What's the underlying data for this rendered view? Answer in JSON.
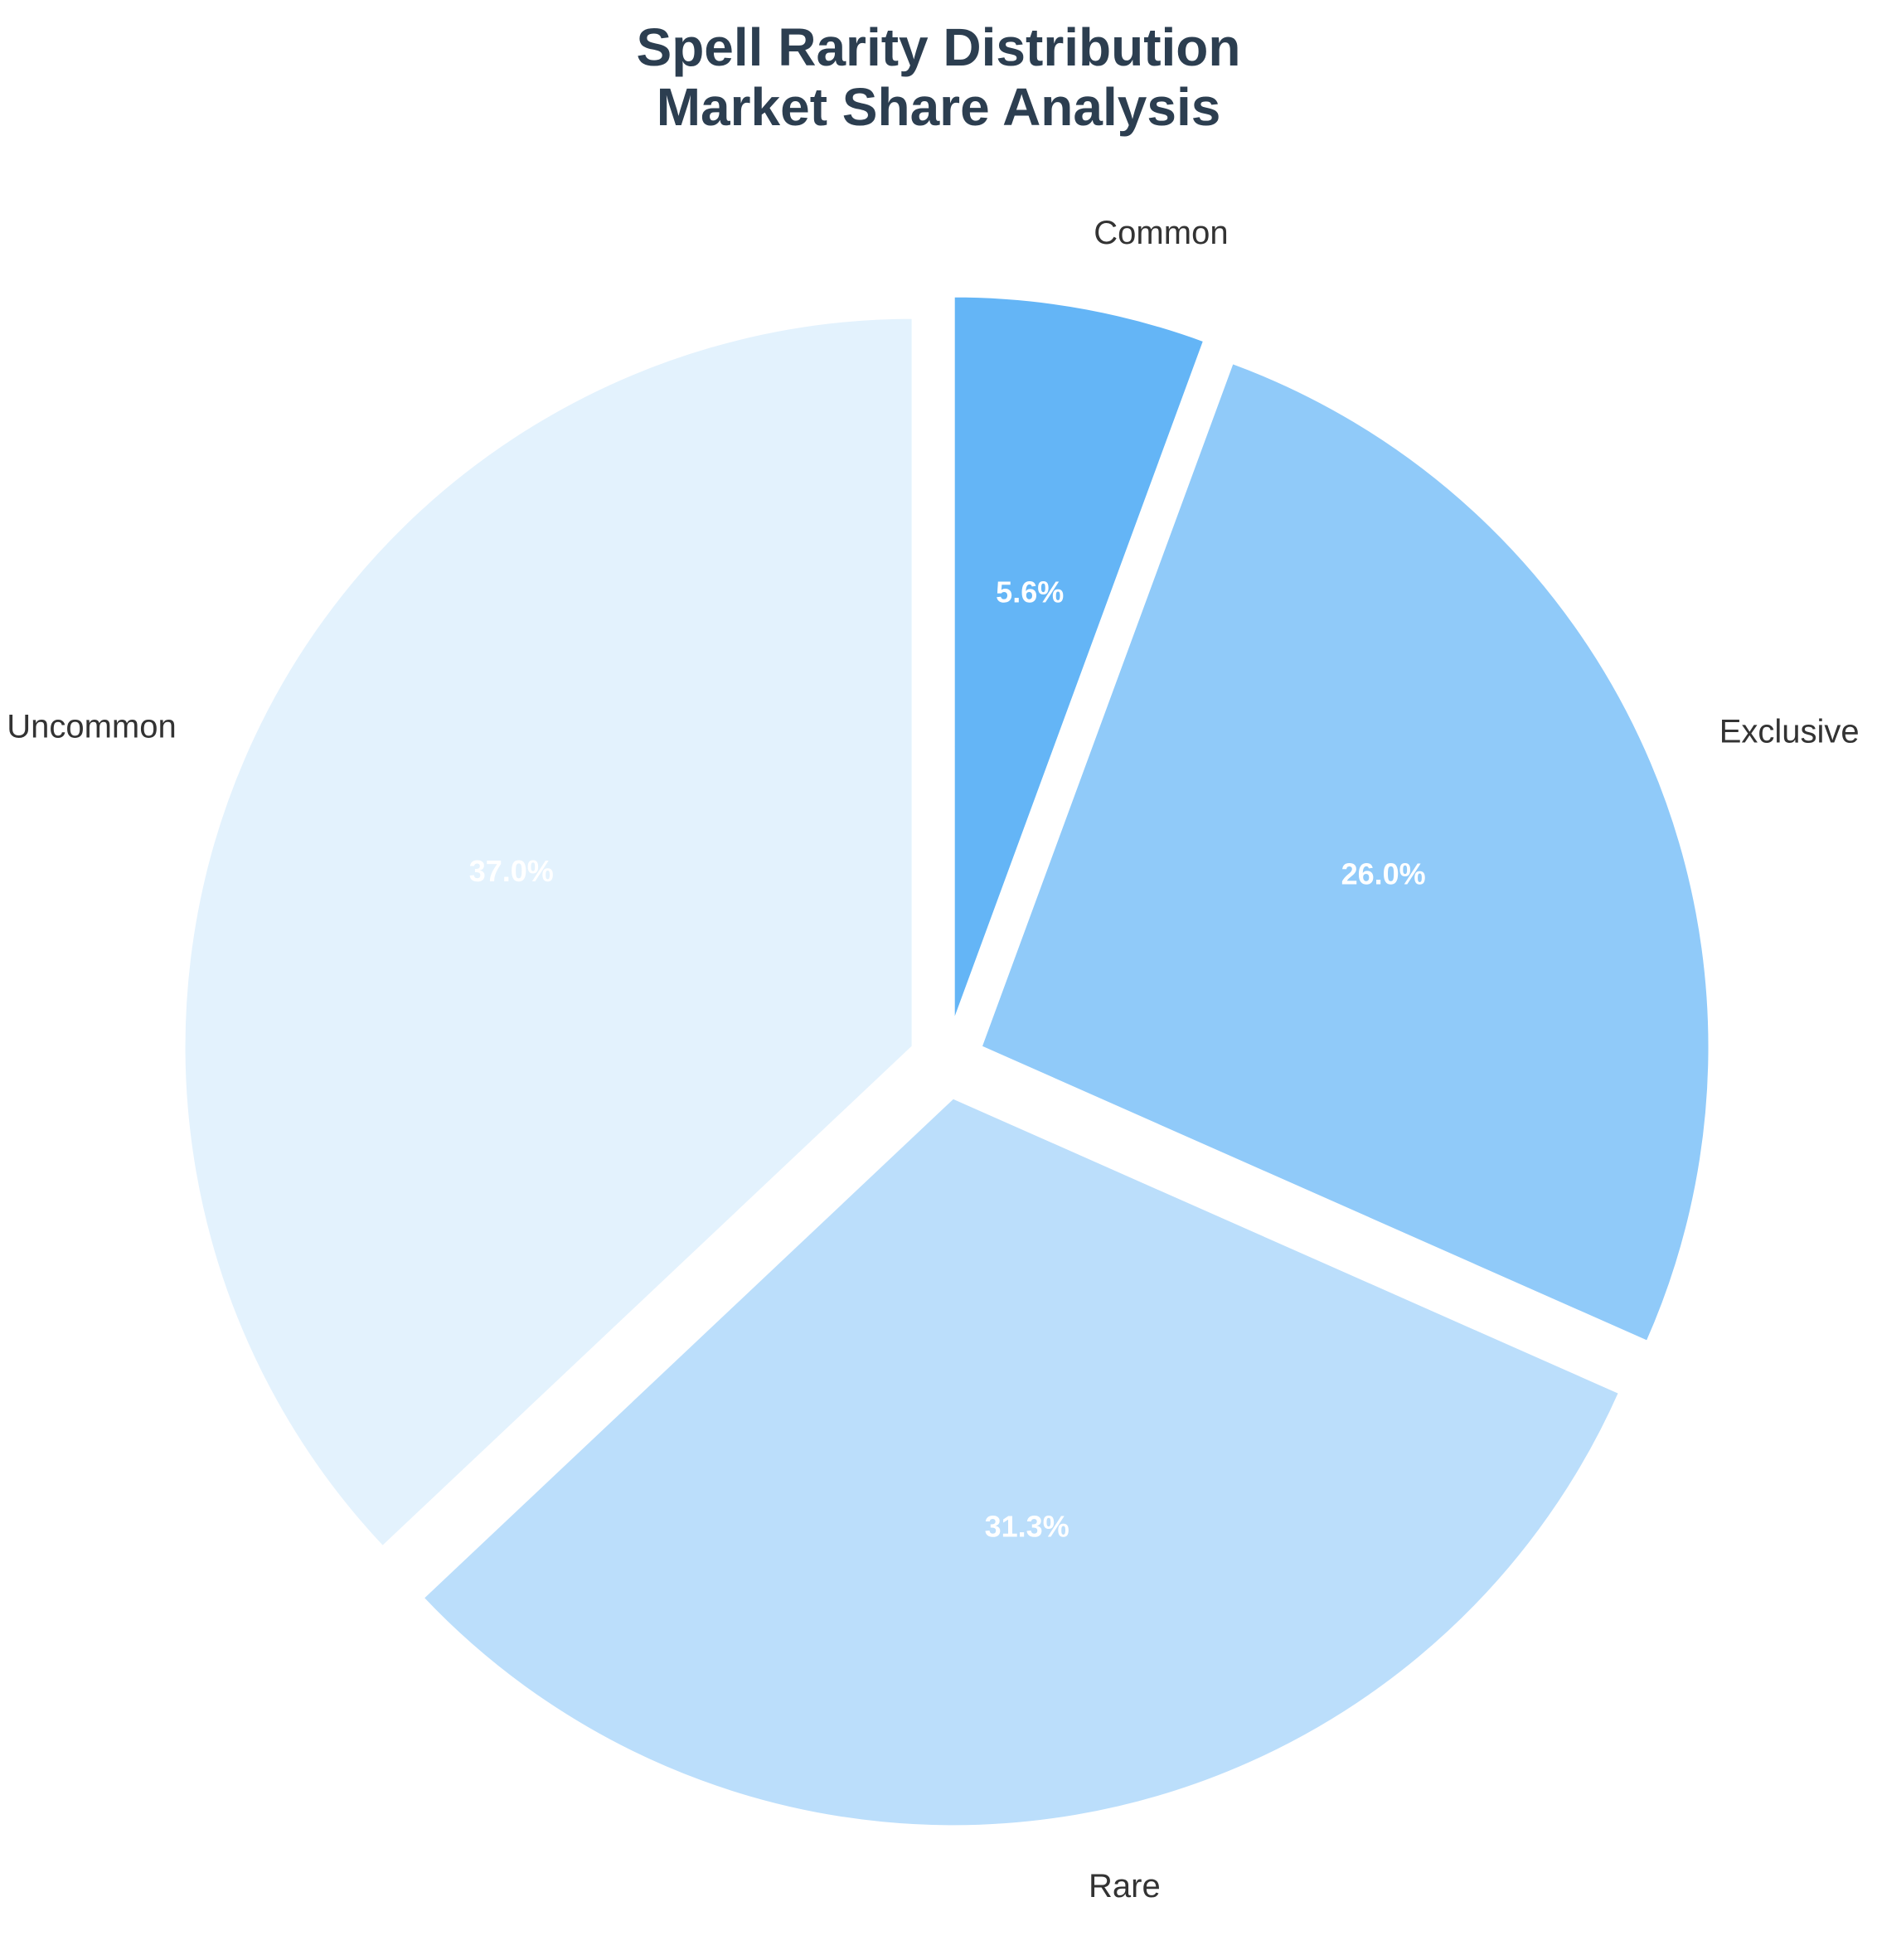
{
  "chart_data": {
    "type": "pie",
    "title": [
      "Spell Rarity Distribution",
      "Market Share Analysis"
    ],
    "categories": [
      "Common",
      "Exclusive",
      "Rare",
      "Uncommon"
    ],
    "values": [
      5.6,
      26.0,
      31.3,
      37.0
    ],
    "value_labels": [
      "5.6%",
      "26.0%",
      "31.3%",
      "37.0%"
    ],
    "colors": [
      "#64b5f6",
      "#90caf9",
      "#bbdefb",
      "#e3f2fd"
    ],
    "start_angle_deg": 90,
    "direction": "clockwise",
    "exploded": true,
    "legend": "none"
  }
}
